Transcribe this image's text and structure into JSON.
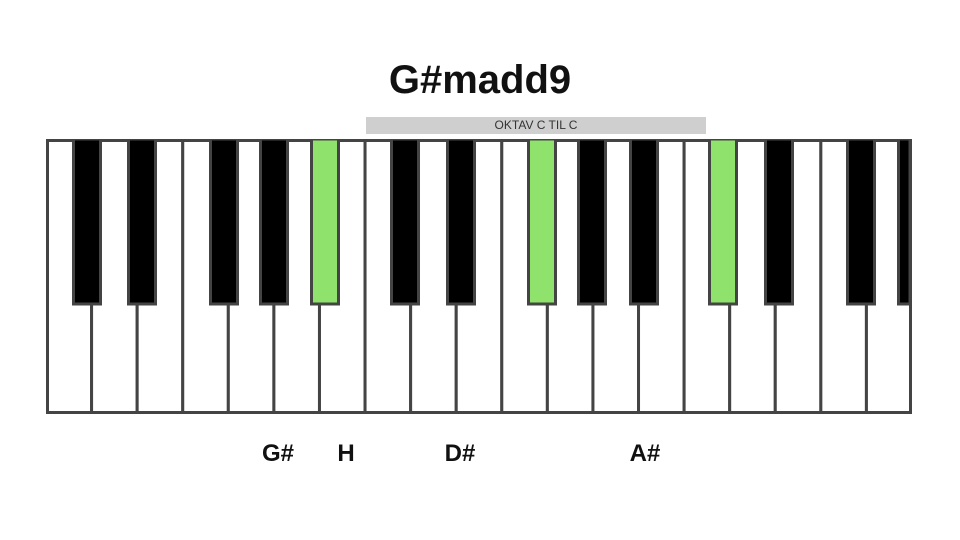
{
  "chord": {
    "title": "G#madd9"
  },
  "octave": {
    "label": "OKTAV C TIL C"
  },
  "keyboard": {
    "white_key_count": 19,
    "first_white_note": "A",
    "black_keys": [
      {
        "note": "A#",
        "highlighted": false
      },
      {
        "note": "C#",
        "highlighted": false
      },
      {
        "note": "D#",
        "highlighted": false
      },
      {
        "note": "F#",
        "highlighted": false
      },
      {
        "note": "G#",
        "highlighted": true
      },
      {
        "note": "A#",
        "highlighted": false
      },
      {
        "note": "C#",
        "highlighted": false
      },
      {
        "note": "D#",
        "highlighted": true
      },
      {
        "note": "F#",
        "highlighted": false
      },
      {
        "note": "G#",
        "highlighted": false
      },
      {
        "note": "A#",
        "highlighted": true
      },
      {
        "note": "C#",
        "highlighted": false
      },
      {
        "note": "D#",
        "highlighted": false
      },
      {
        "note": "F#",
        "highlighted": false
      },
      {
        "note": "G#",
        "highlighted": false
      }
    ],
    "white_keys_highlighted": [
      {
        "note": "H",
        "highlighted": true
      }
    ],
    "colors": {
      "highlight": "#8fe26b",
      "black_key": "#000000",
      "white_key": "#ffffff",
      "outline": "#444444"
    }
  },
  "notes": [
    {
      "label": "G#",
      "key": "black-4"
    },
    {
      "label": "H",
      "key": "white-6"
    },
    {
      "label": "D#",
      "key": "black-7"
    },
    {
      "label": "A#",
      "key": "black-10"
    }
  ]
}
